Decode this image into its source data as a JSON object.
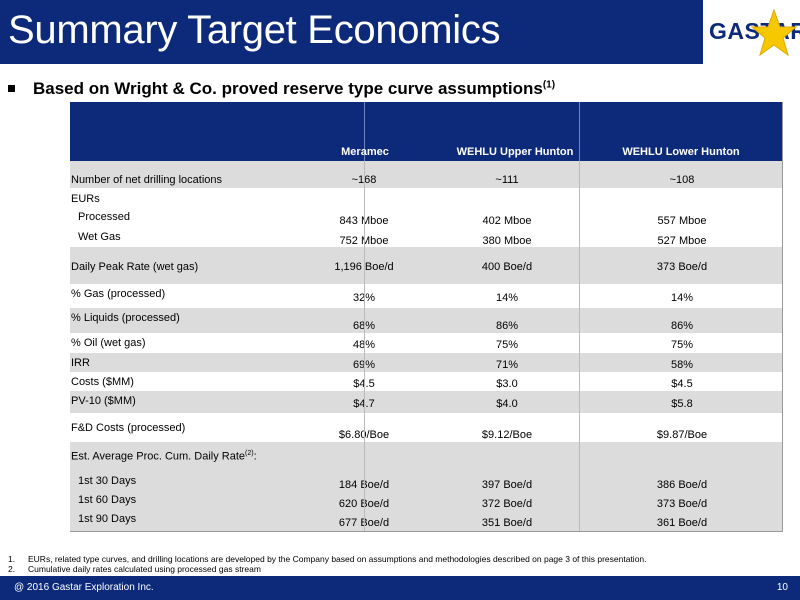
{
  "header": {
    "title": "Summary Target Economics",
    "logo_text": "GASTAR",
    "colors": {
      "brand_navy": "#0d2a7a",
      "star_gold": "#f5c800"
    }
  },
  "subtitle": {
    "text": "Based on Wright & Co. proved reserve type curve assumptions",
    "footnote_ref": "(1)"
  },
  "table": {
    "columns": [
      "Meramec",
      "WEHLU Upper Hunton",
      "WEHLU Lower Hunton"
    ],
    "rows": [
      {
        "label": "Number of net drilling locations",
        "values": [
          "~168",
          "~111",
          "~108"
        ]
      },
      {
        "label": "EURs",
        "values": [
          "",
          "",
          ""
        ]
      },
      {
        "label": "Processed",
        "values": [
          "843 Mboe",
          "402 Mboe",
          "557 Mboe"
        ]
      },
      {
        "label": "Wet Gas",
        "values": [
          "752 Mboe",
          "380 Mboe",
          "527 Mboe"
        ]
      },
      {
        "label": "Daily Peak Rate (wet gas)",
        "values": [
          "1,196 Boe/d",
          "400 Boe/d",
          "373 Boe/d"
        ]
      },
      {
        "label": "% Gas (processed)",
        "values": [
          "32%",
          "14%",
          "14%"
        ]
      },
      {
        "label": "% Liquids (processed)",
        "values": [
          "68%",
          "86%",
          "86%"
        ]
      },
      {
        "label": "% Oil (wet gas)",
        "values": [
          "48%",
          "75%",
          "75%"
        ]
      },
      {
        "label": "IRR",
        "values": [
          "69%",
          "71%",
          "58%"
        ]
      },
      {
        "label": "Costs ($MM)",
        "values": [
          "$4.5",
          "$3.0",
          "$4.5"
        ]
      },
      {
        "label": "PV-10 ($MM)",
        "values": [
          "$4.7",
          "$4.0",
          "$5.8"
        ]
      },
      {
        "label": "F&D Costs (processed)",
        "values": [
          "$6.80/Boe",
          "$9.12/Boe",
          "$9.87/Boe"
        ]
      },
      {
        "label": "Est. Average Proc. Cum. Daily Rate",
        "label_sup": "(2)",
        "label_suffix": ":",
        "values": [
          "",
          "",
          ""
        ]
      },
      {
        "label": "1st 30 Days",
        "values": [
          "184 Boe/d",
          "397 Boe/d",
          "386 Boe/d"
        ]
      },
      {
        "label": "1st 60 Days",
        "values": [
          "620 Boe/d",
          "372 Boe/d",
          "373 Boe/d"
        ]
      },
      {
        "label": "1st 90 Days",
        "values": [
          "677 Boe/d",
          "351 Boe/d",
          "361 Boe/d"
        ]
      }
    ]
  },
  "footnotes": [
    {
      "num": "1.",
      "text": "EURs, related type curves, and drilling locations are developed by the Company based on assumptions and methodologies described on page 3 of this presentation."
    },
    {
      "num": "2.",
      "text": "Cumulative daily rates calculated using processed gas stream"
    }
  ],
  "footer": {
    "copyright": "@ 2016 Gastar Exploration Inc.",
    "page_number": "10"
  }
}
